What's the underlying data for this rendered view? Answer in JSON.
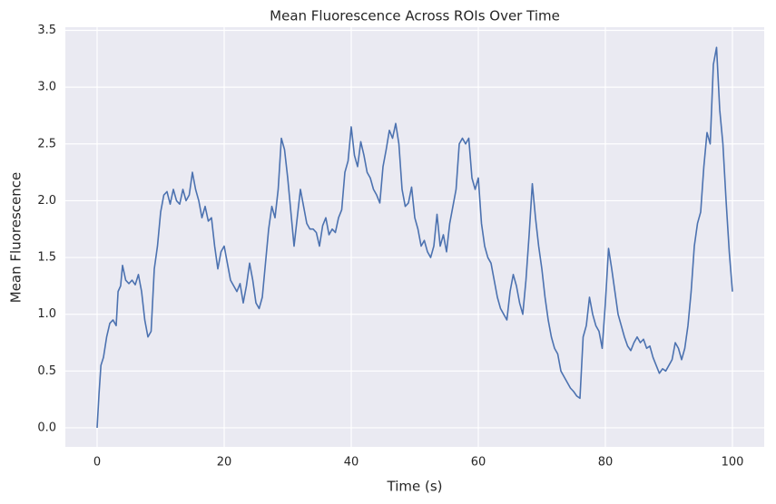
{
  "chart_data": {
    "type": "line",
    "title": "Mean Fluorescence Across ROIs Over Time",
    "x_label": "Time (s)",
    "y_label": "Mean Fluorescence",
    "xlim": [
      -5,
      105
    ],
    "ylim": [
      -0.168,
      3.528
    ],
    "xticks": [
      0,
      20,
      40,
      60,
      80,
      100
    ],
    "yticks": [
      {
        "value": 0,
        "label": "0.0"
      },
      {
        "value": 0.5,
        "label": "0.5"
      },
      {
        "value": 1,
        "label": "1.0"
      },
      {
        "value": 1.5,
        "label": "1.5"
      },
      {
        "value": 2,
        "label": "2.0"
      },
      {
        "value": 2.5,
        "label": "2.5"
      },
      {
        "value": 3,
        "label": "3.0"
      },
      {
        "value": 3.5,
        "label": "3.5"
      }
    ],
    "grid": true,
    "x": [
      0,
      0.3,
      0.6,
      1,
      1.5,
      2,
      2.5,
      3,
      3.3,
      3.7,
      4,
      4.5,
      5,
      5.5,
      6,
      6.5,
      7,
      7.5,
      8,
      8.5,
      9,
      9.5,
      10,
      10.5,
      11,
      11.5,
      12,
      12.5,
      13,
      13.5,
      14,
      14.5,
      15,
      15.5,
      16,
      16.5,
      17,
      17.5,
      18,
      18.5,
      19,
      19.5,
      20,
      20.5,
      21,
      21.5,
      22,
      22.5,
      23,
      23.5,
      24,
      24.5,
      25,
      25.5,
      26,
      26.5,
      27,
      27.5,
      28,
      28.5,
      29,
      29.5,
      30,
      30.5,
      31,
      31.5,
      32,
      32.5,
      33,
      33.5,
      34,
      34.5,
      35,
      35.5,
      36,
      36.5,
      37,
      37.5,
      38,
      38.5,
      39,
      39.5,
      40,
      40.5,
      41,
      41.5,
      42,
      42.5,
      43,
      43.5,
      44,
      44.5,
      45,
      45.5,
      46,
      46.5,
      47,
      47.5,
      48,
      48.5,
      49,
      49.5,
      50,
      50.5,
      51,
      51.5,
      52,
      52.5,
      53,
      53.5,
      54,
      54.5,
      55,
      55.5,
      56,
      56.5,
      57,
      57.5,
      58,
      58.5,
      59,
      59.5,
      60,
      60.5,
      61,
      61.5,
      62,
      62.5,
      63,
      63.5,
      64,
      64.5,
      65,
      65.5,
      66,
      66.5,
      67,
      67.5,
      68,
      68.5,
      69,
      69.5,
      70,
      70.5,
      71,
      71.5,
      72,
      72.5,
      73,
      73.5,
      74,
      74.5,
      75,
      75.5,
      76,
      76.5,
      77,
      77.5,
      78,
      78.5,
      79,
      79.5,
      80,
      80.5,
      81,
      81.5,
      82,
      82.5,
      83,
      83.5,
      84,
      84.5,
      85,
      85.5,
      86,
      86.5,
      87,
      87.5,
      88,
      88.5,
      89,
      89.5,
      90,
      90.5,
      91,
      91.5,
      92,
      92.5,
      93,
      93.5,
      94,
      94.5,
      95,
      95.5,
      96,
      96.5,
      97,
      97.5,
      98,
      98.5,
      99,
      99.5,
      100
    ],
    "series": [
      {
        "color": "#4c72b0",
        "values": [
          0,
          0.3,
          0.55,
          0.62,
          0.8,
          0.92,
          0.95,
          0.9,
          1.2,
          1.25,
          1.43,
          1.3,
          1.27,
          1.3,
          1.26,
          1.35,
          1.2,
          0.95,
          0.8,
          0.85,
          1.4,
          1.6,
          1.9,
          2.05,
          2.08,
          1.97,
          2.1,
          2.0,
          1.97,
          2.1,
          2.0,
          2.05,
          2.25,
          2.1,
          2.0,
          1.85,
          1.95,
          1.82,
          1.85,
          1.6,
          1.4,
          1.55,
          1.6,
          1.45,
          1.3,
          1.25,
          1.2,
          1.27,
          1.1,
          1.25,
          1.45,
          1.3,
          1.1,
          1.05,
          1.15,
          1.45,
          1.75,
          1.95,
          1.85,
          2.1,
          2.55,
          2.45,
          2.2,
          1.9,
          1.6,
          1.85,
          2.1,
          1.95,
          1.8,
          1.75,
          1.75,
          1.72,
          1.6,
          1.78,
          1.85,
          1.7,
          1.75,
          1.72,
          1.85,
          1.92,
          2.25,
          2.35,
          2.65,
          2.4,
          2.3,
          2.52,
          2.4,
          2.25,
          2.2,
          2.1,
          2.05,
          1.98,
          2.3,
          2.45,
          2.62,
          2.55,
          2.68,
          2.5,
          2.1,
          1.95,
          1.98,
          2.12,
          1.85,
          1.75,
          1.6,
          1.65,
          1.55,
          1.5,
          1.6,
          1.88,
          1.6,
          1.7,
          1.55,
          1.8,
          1.95,
          2.1,
          2.5,
          2.55,
          2.5,
          2.55,
          2.2,
          2.1,
          2.2,
          1.8,
          1.6,
          1.5,
          1.45,
          1.3,
          1.15,
          1.05,
          1.0,
          0.95,
          1.2,
          1.35,
          1.25,
          1.1,
          1.0,
          1.3,
          1.7,
          2.15,
          1.85,
          1.6,
          1.4,
          1.15,
          0.95,
          0.8,
          0.7,
          0.65,
          0.5,
          0.45,
          0.4,
          0.35,
          0.32,
          0.28,
          0.26,
          0.8,
          0.9,
          1.15,
          1.0,
          0.9,
          0.85,
          0.7,
          1.1,
          1.58,
          1.4,
          1.2,
          1.0,
          0.9,
          0.8,
          0.72,
          0.68,
          0.75,
          0.8,
          0.75,
          0.78,
          0.7,
          0.72,
          0.62,
          0.55,
          0.48,
          0.52,
          0.5,
          0.55,
          0.6,
          0.75,
          0.7,
          0.6,
          0.7,
          0.9,
          1.2,
          1.6,
          1.8,
          1.9,
          2.3,
          2.6,
          2.5,
          3.2,
          3.35,
          2.8,
          2.5,
          2.0,
          1.55,
          1.2
        ]
      }
    ]
  }
}
